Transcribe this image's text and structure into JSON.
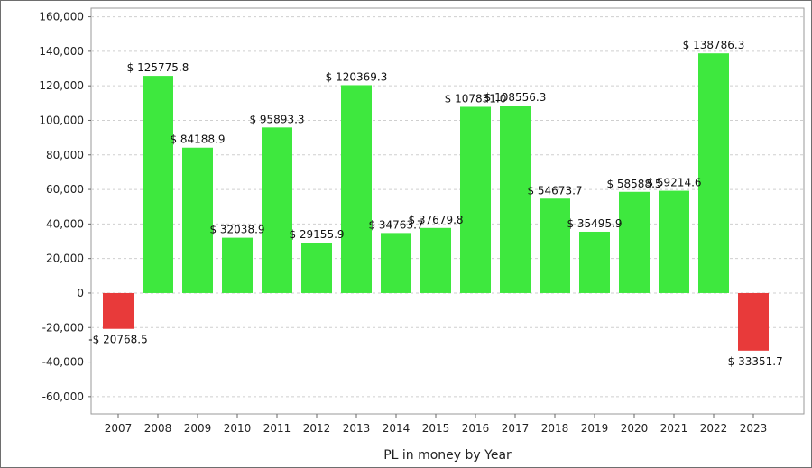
{
  "chart_data": {
    "type": "bar",
    "xlabel": "PL in money by Year",
    "ylabel": "",
    "ylim": [
      -70000,
      165000
    ],
    "yticks": [
      -60000,
      -40000,
      -20000,
      0,
      20000,
      40000,
      60000,
      80000,
      100000,
      120000,
      140000,
      160000
    ],
    "ytick_labels": [
      "-60,000",
      "-40,000",
      "-20,000",
      "0",
      "20,000",
      "40,000",
      "60,000",
      "80,000",
      "100,000",
      "120,000",
      "140,000",
      "160,000"
    ],
    "grid": true,
    "positive_color": "#3ee83e",
    "negative_color": "#e83a3a",
    "categories": [
      "2007",
      "2008",
      "2009",
      "2010",
      "2011",
      "2012",
      "2013",
      "2014",
      "2015",
      "2016",
      "2017",
      "2018",
      "2019",
      "2020",
      "2021",
      "2022",
      "2023"
    ],
    "values": [
      -20768.5,
      125775.8,
      84188.9,
      32038.9,
      95893.3,
      29155.9,
      120369.3,
      34763.7,
      37679.8,
      107831.0,
      108556.3,
      54673.7,
      35495.9,
      58588.5,
      59214.6,
      138786.3,
      -33351.7
    ],
    "data_labels": [
      "-$ 20768.5",
      "$ 125775.8",
      "$ 84188.9",
      "$ 32038.9",
      "$ 95893.3",
      "$ 29155.9",
      "$ 120369.3",
      "$ 34763.7",
      "$ 37679.8",
      "$ 107831.0",
      "$ 108556.3",
      "$ 54673.7",
      "$ 35495.9",
      "$ 58588.5",
      "$ 59214.6",
      "$ 138786.3",
      "-$ 33351.7"
    ]
  }
}
